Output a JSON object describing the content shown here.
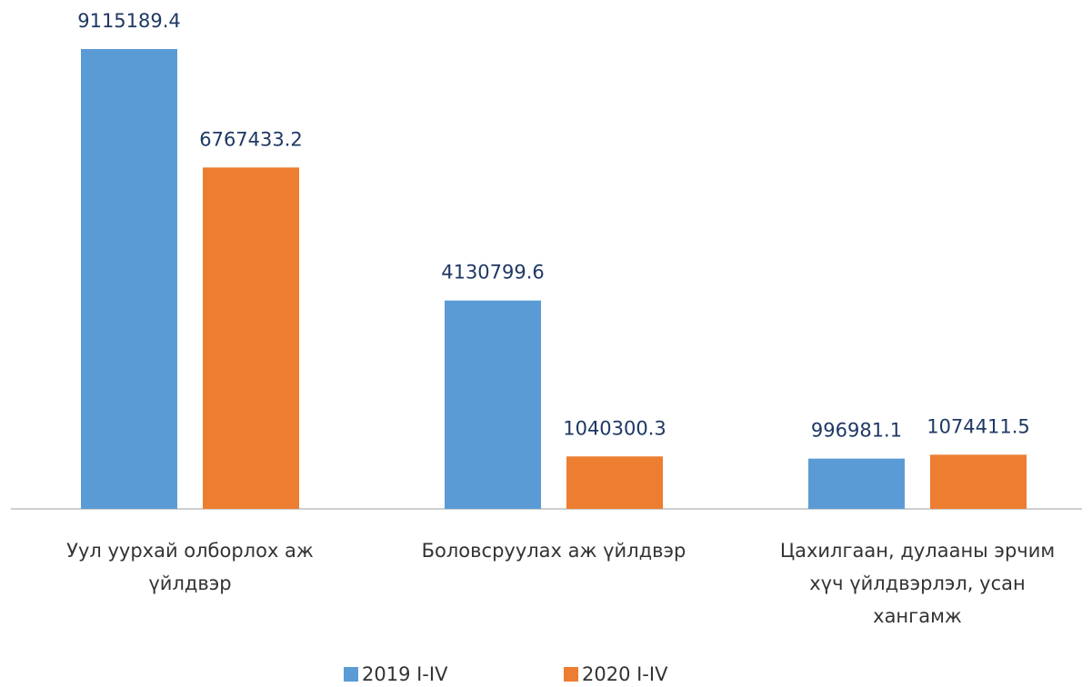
{
  "chart_data": {
    "type": "bar",
    "categories": [
      "Уул уурхай олборлох аж үйлдвэр",
      "Боловсруулах аж үйлдвэр",
      "Цахилгаан, дулааны эрчим хүч үйлдвэрлэл, усан хангамж"
    ],
    "series": [
      {
        "name": "2019 I-IV",
        "color": "#5b9bd5",
        "values": [
          9115189.4,
          4130799.6,
          996981.1
        ]
      },
      {
        "name": "2020 I-IV",
        "color": "#ed7d31",
        "values": [
          6767433.2,
          1040300.3,
          1074411.5
        ]
      }
    ],
    "legend": "bottom"
  }
}
